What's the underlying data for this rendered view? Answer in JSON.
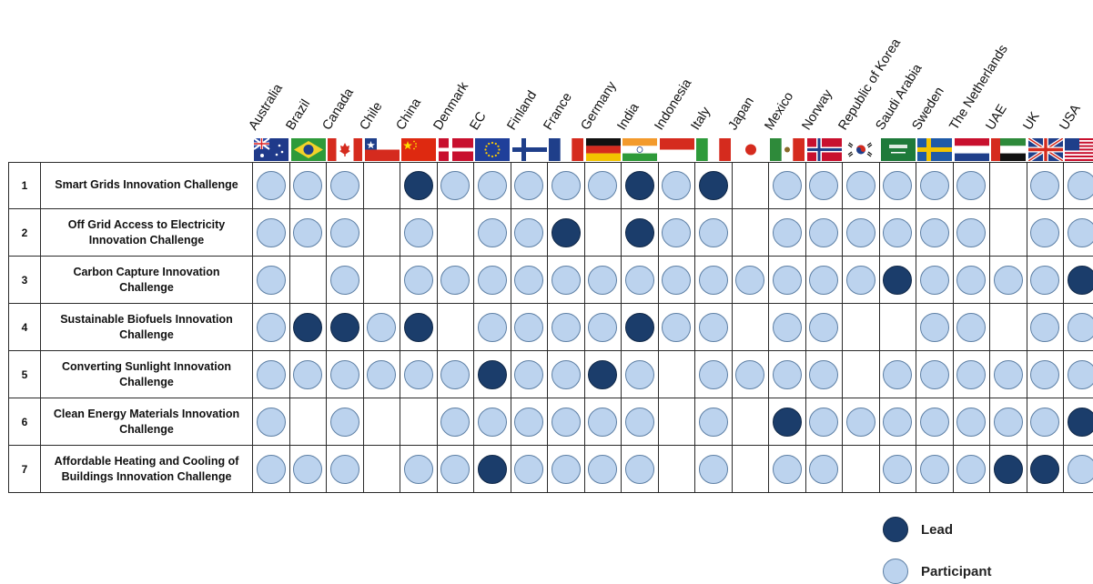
{
  "countries": [
    "Australia",
    "Brazil",
    "Canada",
    "Chile",
    "China",
    "Denmark",
    "EC",
    "Finland",
    "France",
    "Germany",
    "India",
    "Indonesia",
    "Italy",
    "Japan",
    "Mexico",
    "Norway",
    "Republic of Korea",
    "Saudi Arabia",
    "Sweden",
    "The Netherlands",
    "UAE",
    "UK",
    "USA"
  ],
  "flag_icons": [
    "australia-flag-icon",
    "brazil-flag-icon",
    "canada-flag-icon",
    "chile-flag-icon",
    "china-flag-icon",
    "denmark-flag-icon",
    "ec-flag-icon",
    "finland-flag-icon",
    "france-flag-icon",
    "germany-flag-icon",
    "india-flag-icon",
    "indonesia-flag-icon",
    "italy-flag-icon",
    "japan-flag-icon",
    "mexico-flag-icon",
    "norway-flag-icon",
    "korea-flag-icon",
    "saudi-arabia-flag-icon",
    "sweden-flag-icon",
    "netherlands-flag-icon",
    "uae-flag-icon",
    "uk-flag-icon",
    "usa-flag-icon"
  ],
  "challenges": [
    {
      "num": "1",
      "name": "Smart Grids Innovation Challenge",
      "status": [
        "P",
        "P",
        "P",
        "",
        "L",
        "P",
        "P",
        "P",
        "P",
        "P",
        "L",
        "P",
        "L",
        "",
        "P",
        "P",
        "P",
        "P",
        "P",
        "P",
        "",
        "P",
        "P"
      ]
    },
    {
      "num": "2",
      "name": "Off Grid Access to Electricity Innovation Challenge",
      "status": [
        "P",
        "P",
        "P",
        "",
        "P",
        "",
        "P",
        "P",
        "L",
        "",
        "L",
        "P",
        "P",
        "",
        "P",
        "P",
        "P",
        "P",
        "P",
        "P",
        "",
        "P",
        "P"
      ]
    },
    {
      "num": "3",
      "name": "Carbon Capture Innovation Challenge",
      "status": [
        "P",
        "",
        "P",
        "",
        "P",
        "P",
        "P",
        "P",
        "P",
        "P",
        "P",
        "P",
        "P",
        "P",
        "P",
        "P",
        "P",
        "L",
        "P",
        "P",
        "P",
        "P",
        "L"
      ]
    },
    {
      "num": "4",
      "name": "Sustainable Biofuels Innovation Challenge",
      "status": [
        "P",
        "L",
        "L",
        "P",
        "L",
        "",
        "P",
        "P",
        "P",
        "P",
        "L",
        "P",
        "P",
        "",
        "P",
        "P",
        "",
        "",
        "P",
        "P",
        "",
        "P",
        "P"
      ]
    },
    {
      "num": "5",
      "name": "Converting Sunlight Innovation Challenge",
      "status": [
        "P",
        "P",
        "P",
        "P",
        "P",
        "P",
        "L",
        "P",
        "P",
        "L",
        "P",
        "",
        "P",
        "P",
        "P",
        "P",
        "",
        "P",
        "P",
        "P",
        "P",
        "P",
        "P"
      ]
    },
    {
      "num": "6",
      "name": "Clean Energy Materials Innovation Challenge",
      "status": [
        "P",
        "",
        "P",
        "",
        "",
        "P",
        "P",
        "P",
        "P",
        "P",
        "P",
        "",
        "P",
        "",
        "L",
        "P",
        "P",
        "P",
        "P",
        "P",
        "P",
        "P",
        "L"
      ]
    },
    {
      "num": "7",
      "name": "Affordable Heating and Cooling of Buildings Innovation Challenge",
      "status": [
        "P",
        "P",
        "P",
        "",
        "P",
        "P",
        "L",
        "P",
        "P",
        "P",
        "P",
        "",
        "P",
        "",
        "P",
        "P",
        "",
        "P",
        "P",
        "P",
        "L",
        "L",
        "P"
      ]
    }
  ],
  "legend": {
    "lead": "Lead",
    "participant": "Participant"
  },
  "colors": {
    "lead": "#1b3d6b",
    "participant": "#bcd3ee",
    "grid_line": "#2a2a2a"
  }
}
